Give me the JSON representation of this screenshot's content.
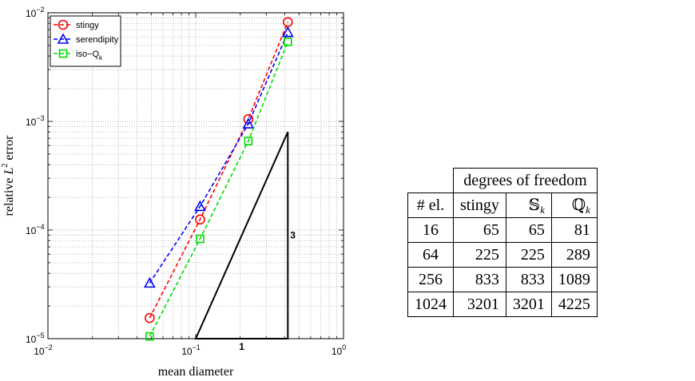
{
  "chart_data": {
    "type": "line",
    "xscale": "log",
    "yscale": "log",
    "xlim": [
      0.01,
      1
    ],
    "ylim": [
      1e-05,
      0.01
    ],
    "grid": true,
    "xlabel": "mean diameter",
    "ylabel_parts": {
      "pre": "relative ",
      "var": "L",
      "sup": "2",
      "post": " error"
    },
    "x_ticks": [
      {
        "base": "10",
        "exp": "−2",
        "value": 0.01
      },
      {
        "base": "10",
        "exp": "−1",
        "value": 0.1
      },
      {
        "base": "10",
        "exp": "0",
        "value": 1
      }
    ],
    "y_ticks": [
      {
        "base": "10",
        "exp": "−5",
        "value": 1e-05
      },
      {
        "base": "10",
        "exp": "−4",
        "value": 0.0001
      },
      {
        "base": "10",
        "exp": "−3",
        "value": 0.001
      },
      {
        "base": "10",
        "exp": "−2",
        "value": 0.01
      }
    ],
    "legend_position": "top-left",
    "series": [
      {
        "name": "stingy",
        "color": "#ff0000",
        "marker": "circle",
        "x": [
          0.0488,
          0.107,
          0.227,
          0.42
        ],
        "y": [
          1.55e-05,
          0.000125,
          0.00105,
          0.0082
        ]
      },
      {
        "name": "serendipity",
        "color": "#0000ff",
        "marker": "triangle",
        "x": [
          0.0488,
          0.107,
          0.227,
          0.42
        ],
        "y": [
          3.25e-05,
          0.000165,
          0.00095,
          0.0066
        ]
      },
      {
        "name_base": "iso−Q",
        "name_sub": "k",
        "color": "#00dd00",
        "marker": "square",
        "x": [
          0.0488,
          0.107,
          0.227,
          0.42
        ],
        "y": [
          1.05e-05,
          8.3e-05,
          0.00066,
          0.0054
        ]
      }
    ],
    "slope_triangle": {
      "corners": [
        [
          0.1,
          1e-05
        ],
        [
          0.42,
          1e-05
        ],
        [
          0.42,
          0.0008
        ]
      ],
      "run_label": "1",
      "rise_label": "3"
    }
  },
  "table": {
    "group_header": "degrees of freedom",
    "columns": [
      {
        "text": "# el."
      },
      {
        "text": "stingy"
      },
      {
        "bb": "𝕊",
        "sub": "k"
      },
      {
        "bb": "ℚ",
        "sub": "k"
      }
    ],
    "rows": [
      [
        "16",
        "65",
        "65",
        "81"
      ],
      [
        "64",
        "225",
        "225",
        "289"
      ],
      [
        "256",
        "833",
        "833",
        "1089"
      ],
      [
        "1024",
        "3201",
        "3201",
        "4225"
      ]
    ]
  }
}
